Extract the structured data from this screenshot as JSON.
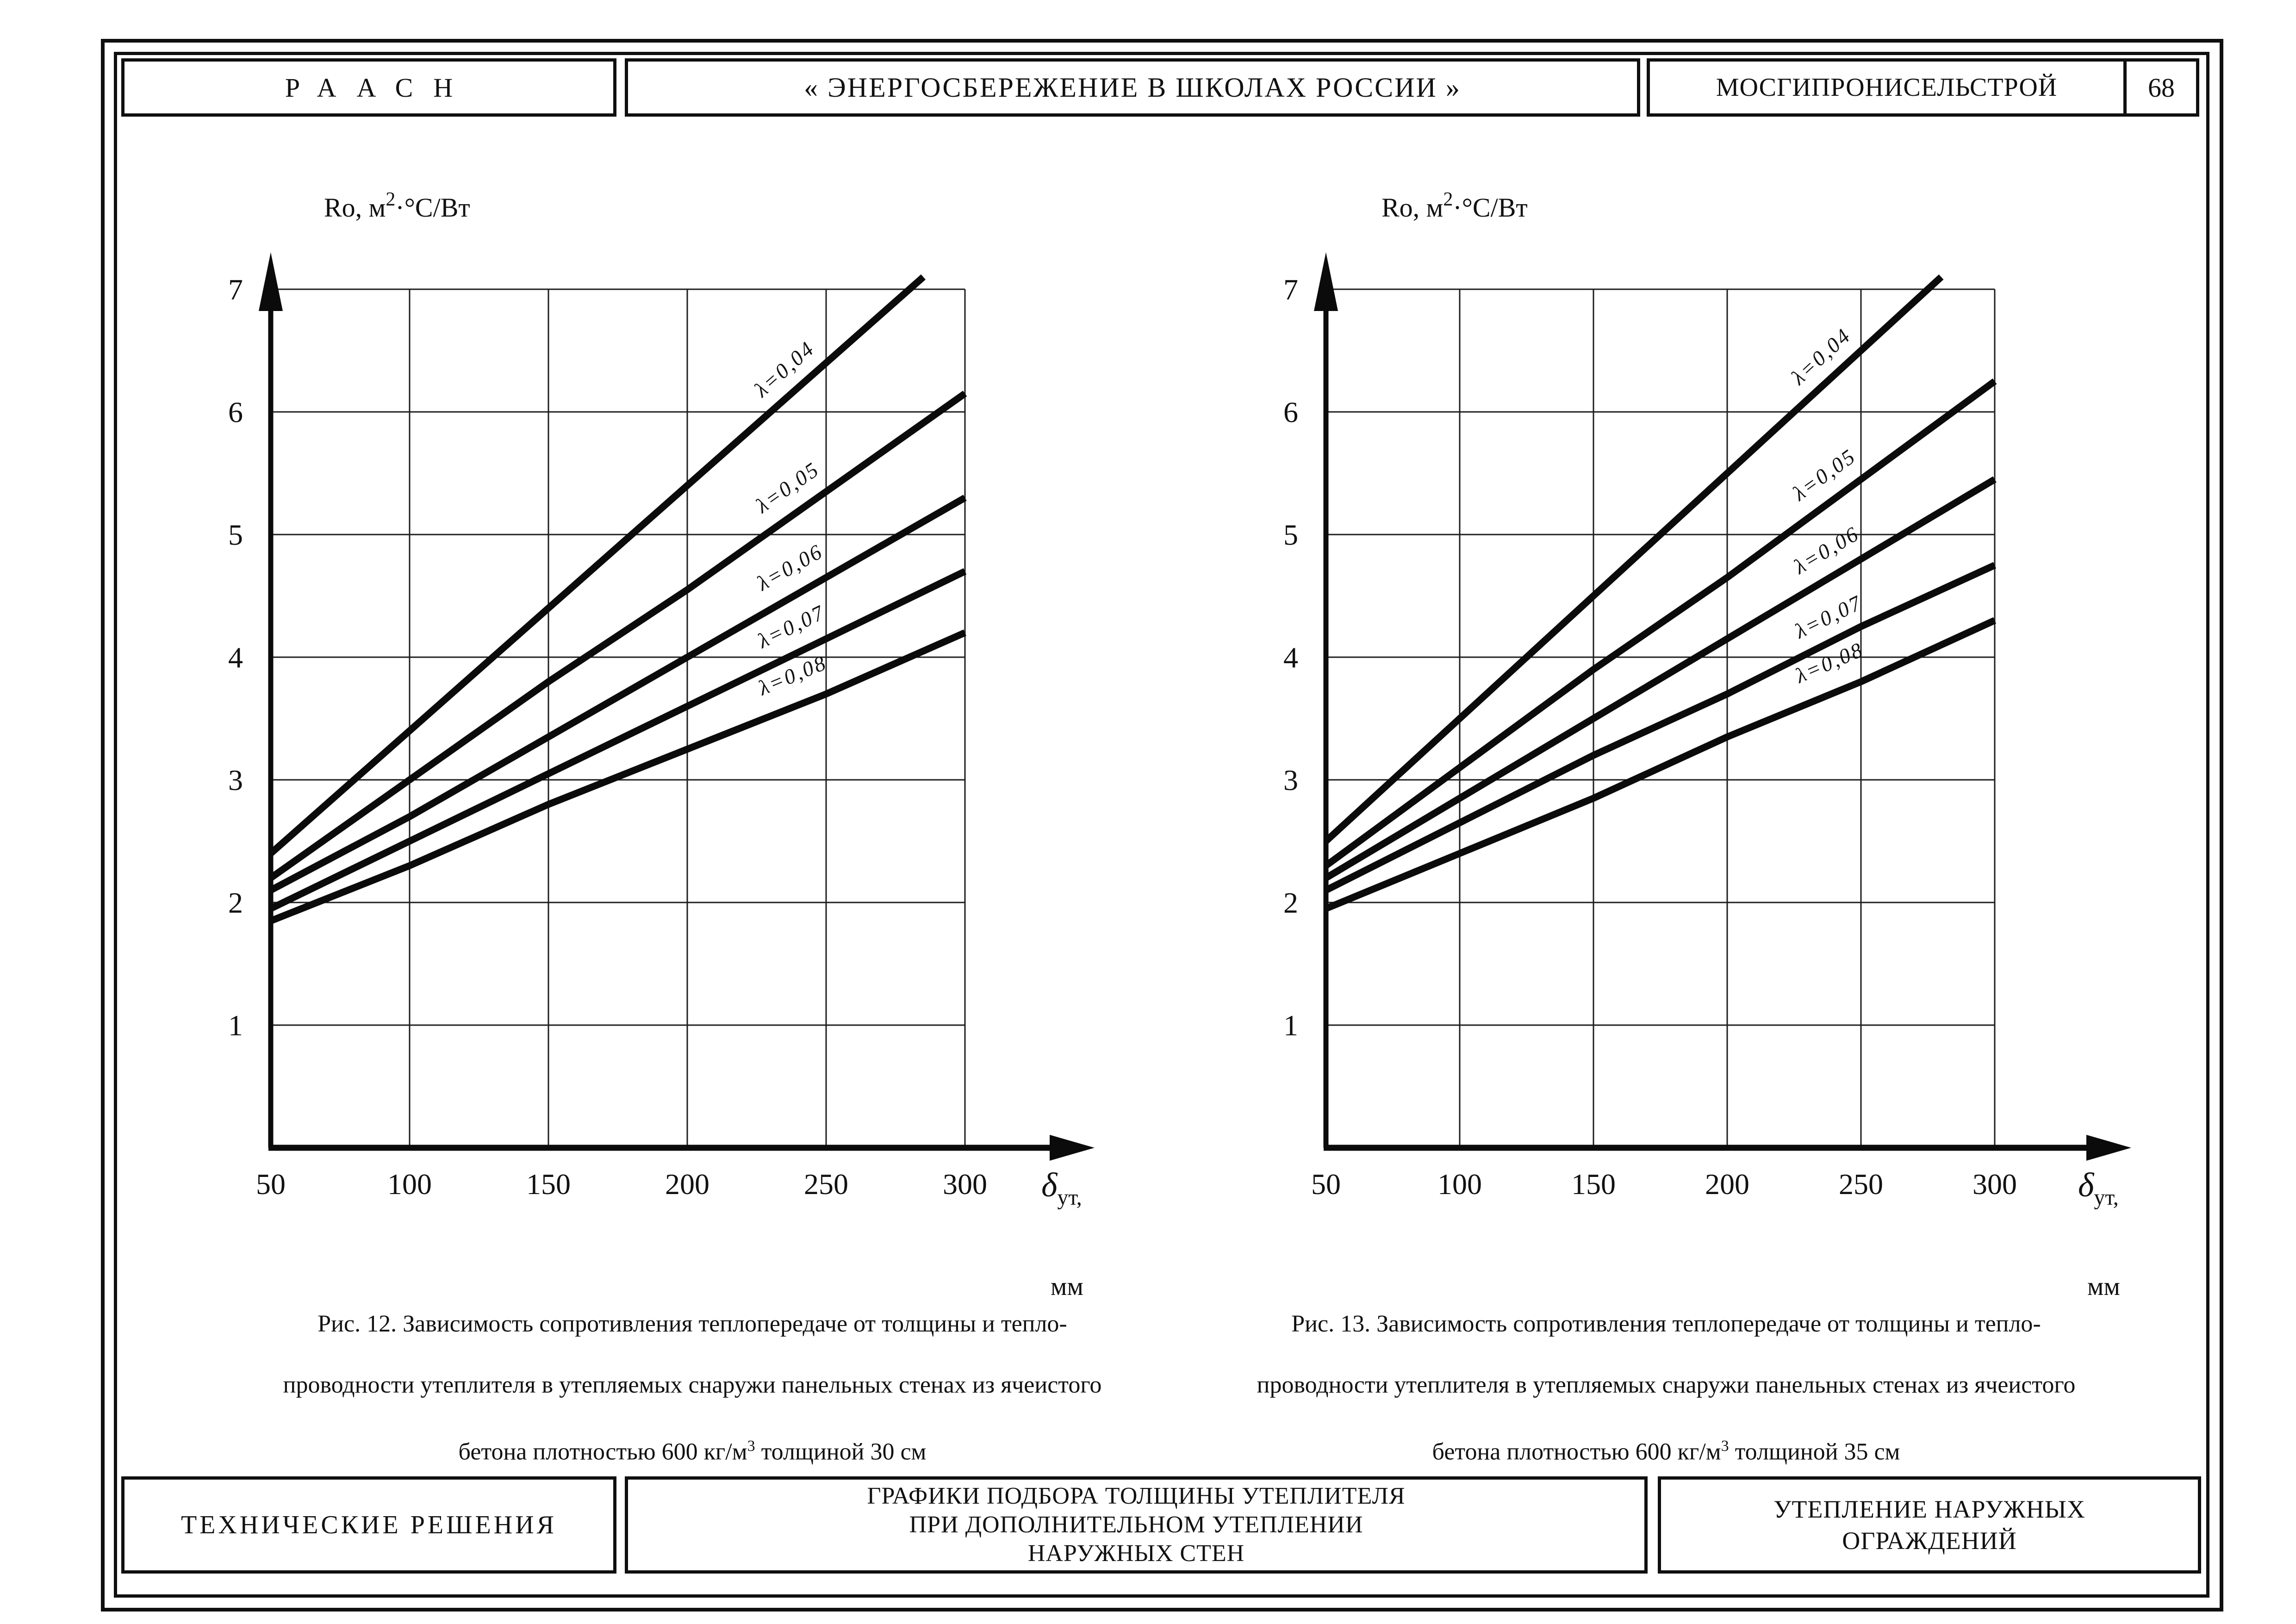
{
  "meta": {
    "ink_color": "#111111",
    "paper_color": "#ffffff"
  },
  "header": {
    "left": "РААСН",
    "center": "« ЭНЕРГОСБЕРЕЖЕНИЕ В ШКОЛАХ РОССИИ »",
    "right": "МОСГИПРОНИСЕЛЬСТРОЙ",
    "page_number": "68"
  },
  "figures": [
    {
      "caption_line1": "Рис. 12. Зависимость сопротивления теплопередаче от толщины и тепло-",
      "caption_line2": "проводности утеплителя в утепляемых снаружи панельных стенах из ячеистого",
      "caption_line3_pre": "бетона плотностью 600 кг/м",
      "caption_line3_sup": "3",
      "caption_line3_post": " толщиной 30 см"
    },
    {
      "caption_line1": "Рис. 13. Зависимость сопротивления теплопередаче от толщины и тепло-",
      "caption_line2": "проводности утеплителя в утепляемых снаружи панельных стенах из ячеистого",
      "caption_line3_pre": "бетона плотностью 600 кг/м",
      "caption_line3_sup": "3",
      "caption_line3_post": " толщиной 35 см"
    }
  ],
  "footer": {
    "left": "ТЕХНИЧЕСКИЕ РЕШЕНИЯ",
    "center_lines": [
      "ГРАФИКИ ПОДБОРА ТОЛЩИНЫ УТЕПЛИТЕЛЯ",
      "ПРИ ДОПОЛНИТЕЛЬНОМ УТЕПЛЕНИИ",
      "НАРУЖНЫХ СТЕН"
    ],
    "right_lines": [
      "УТЕПЛЕНИЕ НАРУЖНЫХ",
      "ОГРАЖДЕНИЙ"
    ]
  },
  "chart_data": [
    {
      "type": "line",
      "figure": "Рис. 12",
      "title": "Зависимость сопротивления теплопередаче от толщины и теплопроводности утеплителя (стена 30 см)",
      "ylabel": {
        "pre": "Ro, м",
        "sup": "2",
        "post": "·°С/Вт"
      },
      "xlabel": {
        "symbol": "δ",
        "sub": "ут,",
        "unit": "мм"
      },
      "xlim": [
        50,
        300
      ],
      "ylim": [
        0,
        7
      ],
      "x_ticks": [
        50,
        100,
        150,
        200,
        250,
        300
      ],
      "y_ticks": [
        1,
        2,
        3,
        4,
        5,
        6,
        7
      ],
      "grid": true,
      "legend_position": "labels on lines",
      "series": [
        {
          "name": "λ=0,04",
          "x": [
            50,
            100,
            150,
            200,
            250,
            285
          ],
          "y": [
            2.4,
            3.4,
            4.4,
            5.4,
            6.4,
            7.1
          ]
        },
        {
          "name": "λ=0,05",
          "x": [
            50,
            100,
            150,
            200,
            250,
            300
          ],
          "y": [
            2.2,
            3.0,
            3.8,
            4.55,
            5.35,
            6.15
          ]
        },
        {
          "name": "λ=0,06",
          "x": [
            50,
            100,
            150,
            200,
            250,
            300
          ],
          "y": [
            2.1,
            2.7,
            3.35,
            4.0,
            4.65,
            5.3
          ]
        },
        {
          "name": "λ=0,07",
          "x": [
            50,
            100,
            150,
            200,
            250,
            300
          ],
          "y": [
            1.95,
            2.5,
            3.05,
            3.6,
            4.15,
            4.7
          ]
        },
        {
          "name": "λ=0,08",
          "x": [
            50,
            100,
            150,
            200,
            250,
            300
          ],
          "y": [
            1.85,
            2.3,
            2.8,
            3.25,
            3.7,
            4.2
          ]
        }
      ]
    },
    {
      "type": "line",
      "figure": "Рис. 13",
      "title": "Зависимость сопротивления теплопередаче от толщины и теплопроводности утеплителя (стена 35 см)",
      "ylabel": {
        "pre": "Ro, м",
        "sup": "2",
        "post": "·°С/Вт"
      },
      "xlabel": {
        "symbol": "δ",
        "sub": "ут,",
        "unit": "мм"
      },
      "xlim": [
        50,
        300
      ],
      "ylim": [
        0,
        7
      ],
      "x_ticks": [
        50,
        100,
        150,
        200,
        250,
        300
      ],
      "y_ticks": [
        1,
        2,
        3,
        4,
        5,
        6,
        7
      ],
      "grid": true,
      "legend_position": "labels on lines",
      "series": [
        {
          "name": "λ=0,04",
          "x": [
            50,
            100,
            150,
            200,
            250,
            280
          ],
          "y": [
            2.5,
            3.5,
            4.5,
            5.5,
            6.5,
            7.1
          ]
        },
        {
          "name": "λ=0,05",
          "x": [
            50,
            100,
            150,
            200,
            250,
            300
          ],
          "y": [
            2.3,
            3.1,
            3.9,
            4.65,
            5.45,
            6.25
          ]
        },
        {
          "name": "λ=0,06",
          "x": [
            50,
            100,
            150,
            200,
            250,
            300
          ],
          "y": [
            2.2,
            2.85,
            3.5,
            4.15,
            4.8,
            5.45
          ]
        },
        {
          "name": "λ=0,07",
          "x": [
            50,
            100,
            150,
            200,
            250,
            300
          ],
          "y": [
            2.1,
            2.65,
            3.2,
            3.7,
            4.25,
            4.75
          ]
        },
        {
          "name": "λ=0,08",
          "x": [
            50,
            100,
            150,
            200,
            250,
            300
          ],
          "y": [
            1.95,
            2.4,
            2.85,
            3.35,
            3.8,
            4.3
          ]
        }
      ]
    }
  ]
}
